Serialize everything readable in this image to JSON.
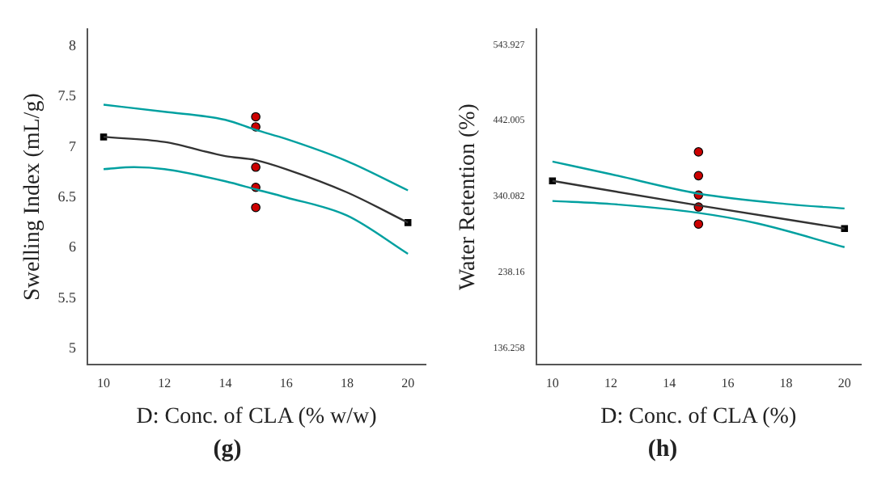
{
  "chart_data": [
    {
      "type": "scatter",
      "xlabel": "D: Conc. of CLA (% w/w)",
      "ylabel": "Swelling Index (mL/g)",
      "annotations": [
        "(g)"
      ],
      "xlim": [
        9.47,
        20.58
      ],
      "ylim": [
        4.84,
        8.17
      ],
      "xticks": [
        10,
        12,
        14,
        16,
        18,
        20
      ],
      "yticks": [
        5,
        5.5,
        6,
        6.5,
        7,
        7.5,
        8
      ],
      "grid": false,
      "legend": false,
      "series": [
        {
          "type": "line",
          "marker": "none",
          "line_style": "solid",
          "color": "#00a0a0",
          "x": [
            10,
            12,
            14,
            15,
            16,
            18,
            20
          ],
          "values": [
            7.42,
            7.35,
            7.27,
            7.17,
            7.08,
            6.86,
            6.57
          ]
        },
        {
          "type": "line",
          "marker": "none",
          "line_style": "solid",
          "color": "#00a0a0",
          "x": [
            10,
            11,
            12,
            14,
            15,
            16,
            18,
            20
          ],
          "values": [
            6.78,
            6.8,
            6.78,
            6.66,
            6.58,
            6.5,
            6.32,
            5.94
          ]
        },
        {
          "type": "line",
          "marker": "none",
          "line_style": "solid",
          "color": "#333333",
          "x": [
            10,
            12,
            14,
            15,
            16,
            18,
            20
          ],
          "values": [
            7.1,
            7.05,
            6.91,
            6.87,
            6.78,
            6.55,
            6.25
          ]
        },
        {
          "type": "scatter",
          "marker": "circle",
          "color": "#cc0000",
          "x": [
            15,
            15,
            15,
            15,
            15
          ],
          "values": [
            7.3,
            7.2,
            6.8,
            6.6,
            6.4
          ]
        },
        {
          "type": "scatter",
          "marker": "square",
          "color": "#000000",
          "x": [
            10,
            20
          ],
          "values": [
            7.1,
            6.25
          ]
        }
      ]
    },
    {
      "type": "scatter",
      "xlabel": "D: Conc. of CLA (%)",
      "ylabel": "Water Retention (%)",
      "annotations": [
        "(h)"
      ],
      "xlim": [
        9.44,
        20.56
      ],
      "ylim": [
        114,
        565
      ],
      "xticks": [
        10,
        12,
        14,
        16,
        18,
        20
      ],
      "yticks": [
        136.258,
        238.16,
        340.082,
        442.005,
        543.927
      ],
      "grid": false,
      "legend": false,
      "series": [
        {
          "type": "line",
          "marker": "none",
          "line_style": "solid",
          "color": "#00a0a0",
          "x": [
            10,
            12,
            15,
            18,
            20
          ],
          "values": [
            387,
            370,
            344,
            330,
            324
          ]
        },
        {
          "type": "line",
          "marker": "none",
          "line_style": "solid",
          "color": "#00a0a0",
          "x": [
            10,
            12,
            15,
            17,
            20
          ],
          "values": [
            334,
            330,
            318,
            304,
            272
          ]
        },
        {
          "type": "line",
          "marker": "none",
          "line_style": "solid",
          "color": "#333333",
          "x": [
            10,
            15,
            20
          ],
          "values": [
            361,
            328,
            297
          ]
        },
        {
          "type": "scatter",
          "marker": "circle",
          "color": "#cc0000",
          "x": [
            15,
            15,
            15,
            15,
            15
          ],
          "values": [
            400,
            368,
            342,
            326,
            303
          ]
        },
        {
          "type": "scatter",
          "marker": "square",
          "color": "#000000",
          "x": [
            10,
            20
          ],
          "values": [
            361,
            297
          ]
        }
      ]
    }
  ]
}
